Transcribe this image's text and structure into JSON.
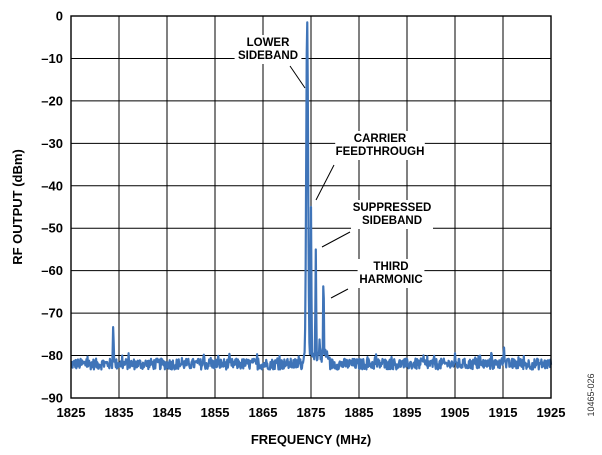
{
  "chart_data": {
    "type": "line",
    "xlabel": "FREQUENCY (MHz)",
    "ylabel": "RF OUTPUT (dBm)",
    "xlim": [
      1825,
      1925
    ],
    "ylim": [
      -90,
      0
    ],
    "x_ticks": [
      1825,
      1835,
      1845,
      1855,
      1865,
      1875,
      1885,
      1895,
      1905,
      1915,
      1925
    ],
    "y_ticks": [
      0,
      -10,
      -20,
      -30,
      -40,
      -50,
      -60,
      -70,
      -80,
      -90
    ],
    "y_tick_labels": [
      "0",
      "–10",
      "–20",
      "–30",
      "–40",
      "–50",
      "–60",
      "–70",
      "–80",
      "–90"
    ],
    "grid": true,
    "color": "#3f74b8",
    "noise_floor_dBm": -82,
    "series": [
      {
        "values_description": "spectrum",
        "peaks": [
          {
            "x": 1833.8,
            "y": -73
          },
          {
            "x": 1874.2,
            "y": -1
          },
          {
            "x": 1875.0,
            "y": -45
          },
          {
            "x": 1876.0,
            "y": -55
          },
          {
            "x": 1877.6,
            "y": -61
          },
          {
            "x": 1876.8,
            "y": -76
          },
          {
            "x": 1878.2,
            "y": -79
          },
          {
            "x": 1912.6,
            "y": -79
          },
          {
            "x": 1915.2,
            "y": -78
          }
        ]
      }
    ],
    "annotations": [
      {
        "lines": [
          "LOWER",
          "SIDEBAND"
        ],
        "x": 1874.2,
        "y": -1
      },
      {
        "lines": [
          "CARRIER",
          "FEEDTHROUGH"
        ],
        "x": 1875.0,
        "y": -45
      },
      {
        "lines": [
          "SUPPRESSED",
          "SIDEBAND"
        ],
        "x": 1876.0,
        "y": -55
      },
      {
        "lines": [
          "THIRD",
          "HARMONIC"
        ],
        "x": 1877.6,
        "y": -61
      }
    ]
  },
  "figure_id": "10465-026"
}
